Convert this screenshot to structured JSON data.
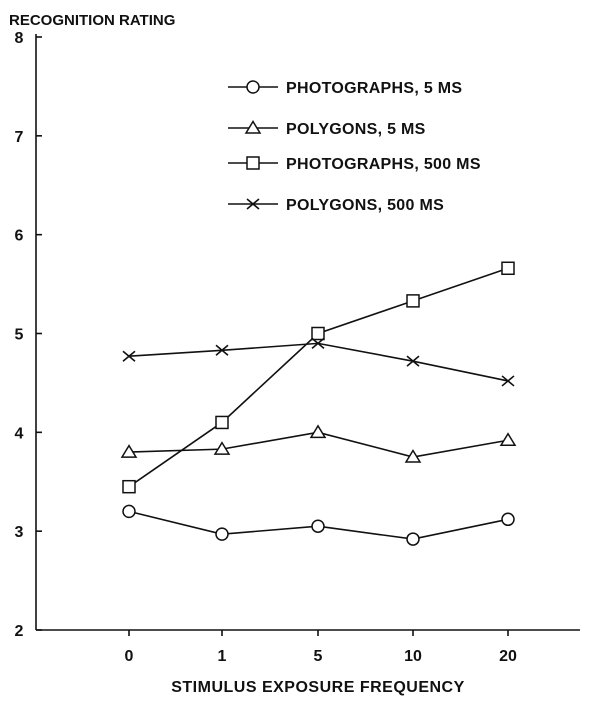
{
  "chart_data": {
    "type": "line",
    "title": "",
    "ylabel": "RECOGNITION RATING",
    "xlabel": "STIMULUS EXPOSURE FREQUENCY",
    "categories": [
      "0",
      "1",
      "5",
      "10",
      "20"
    ],
    "ylim": [
      2,
      8
    ],
    "yticks": [
      "2",
      "3",
      "4",
      "5",
      "6",
      "7",
      "8"
    ],
    "grid": false,
    "legend_position": "top-right",
    "series": [
      {
        "name": "PHOTOGRAPHS, 5 MS",
        "marker": "circle",
        "values": [
          3.2,
          2.97,
          3.05,
          2.92,
          3.12
        ]
      },
      {
        "name": "POLYGONS, 5 MS",
        "marker": "triangle",
        "values": [
          3.8,
          3.83,
          4.0,
          3.75,
          3.92
        ]
      },
      {
        "name": "PHOTOGRAPHS, 500 MS",
        "marker": "square",
        "values": [
          3.45,
          4.1,
          5.0,
          5.33,
          5.66
        ]
      },
      {
        "name": "POLYGONS, 500 MS",
        "marker": "x",
        "values": [
          4.77,
          4.83,
          4.9,
          4.72,
          4.52
        ]
      }
    ]
  }
}
